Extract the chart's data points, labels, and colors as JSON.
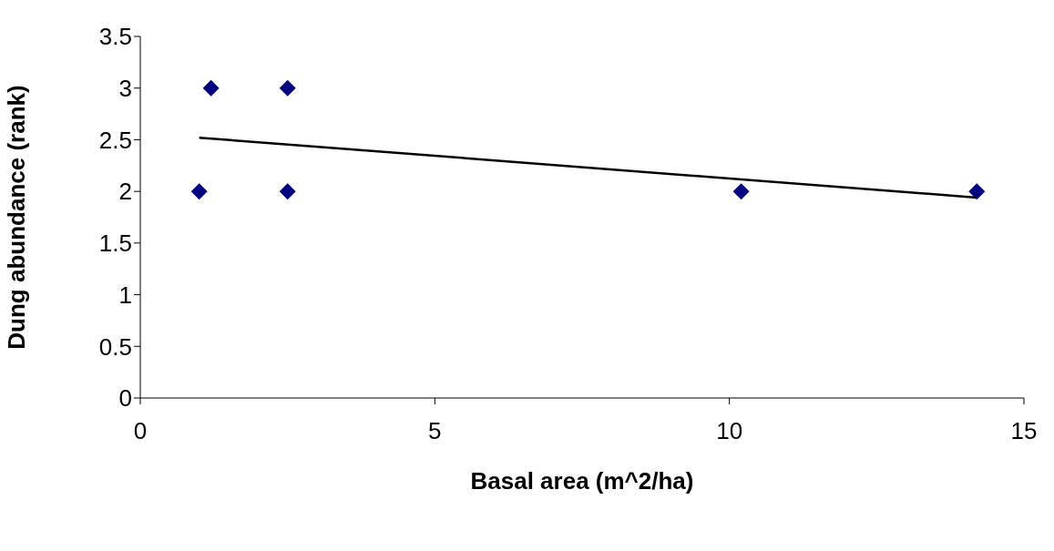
{
  "chart_data": {
    "type": "scatter",
    "xlabel": "Basal area (m^2/ha)",
    "ylabel": "Dung abundance (rank)",
    "series": [
      {
        "color": "#000080",
        "marker": "diamond",
        "x": [
          1.0,
          1.2,
          2.5,
          2.5,
          10.2,
          14.2
        ],
        "values": [
          2,
          3,
          3,
          2,
          2,
          2
        ]
      },
      {
        "type": "line",
        "color": "#000000",
        "marker": "none",
        "x": [
          1.0,
          14.2
        ],
        "values": [
          2.52,
          1.94
        ]
      }
    ],
    "xlim": [
      0,
      15
    ],
    "xticks": [
      0,
      5,
      10,
      15
    ],
    "ylim": [
      0,
      3.5
    ],
    "yticks": [
      0,
      0.5,
      1,
      1.5,
      2,
      2.5,
      3,
      3.5
    ],
    "grid": false
  }
}
